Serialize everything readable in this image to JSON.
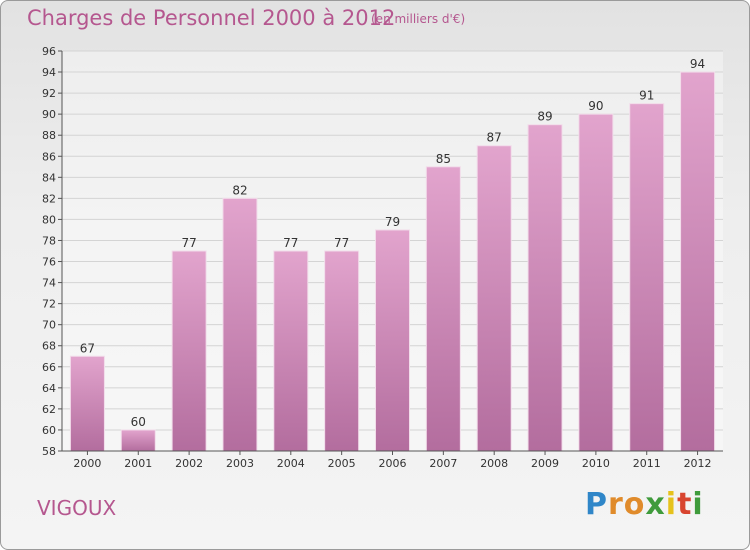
{
  "title": "Charges de Personnel 2000 à 2012",
  "subtitle": "(en milliers d'€)",
  "place": "VIGOUX",
  "logo": "Proxiti",
  "colors": {
    "title": "#b5578f",
    "bar_top": "#e2a4cd",
    "bar_bottom": "#b36d9e",
    "grid": "#d4d4d4",
    "axis": "#555555"
  },
  "chart_data": {
    "type": "bar",
    "categories": [
      "2000",
      "2001",
      "2002",
      "2003",
      "2004",
      "2005",
      "2006",
      "2007",
      "2008",
      "2009",
      "2010",
      "2011",
      "2012"
    ],
    "values": [
      67,
      60,
      77,
      82,
      77,
      77,
      79,
      85,
      87,
      89,
      90,
      91,
      94
    ],
    "ylim": [
      58,
      96
    ],
    "yticks": [
      58,
      60,
      62,
      64,
      66,
      68,
      70,
      72,
      74,
      76,
      78,
      80,
      82,
      84,
      86,
      88,
      90,
      92,
      94,
      96
    ],
    "grid": true,
    "legend": "none",
    "data_labels": true
  }
}
